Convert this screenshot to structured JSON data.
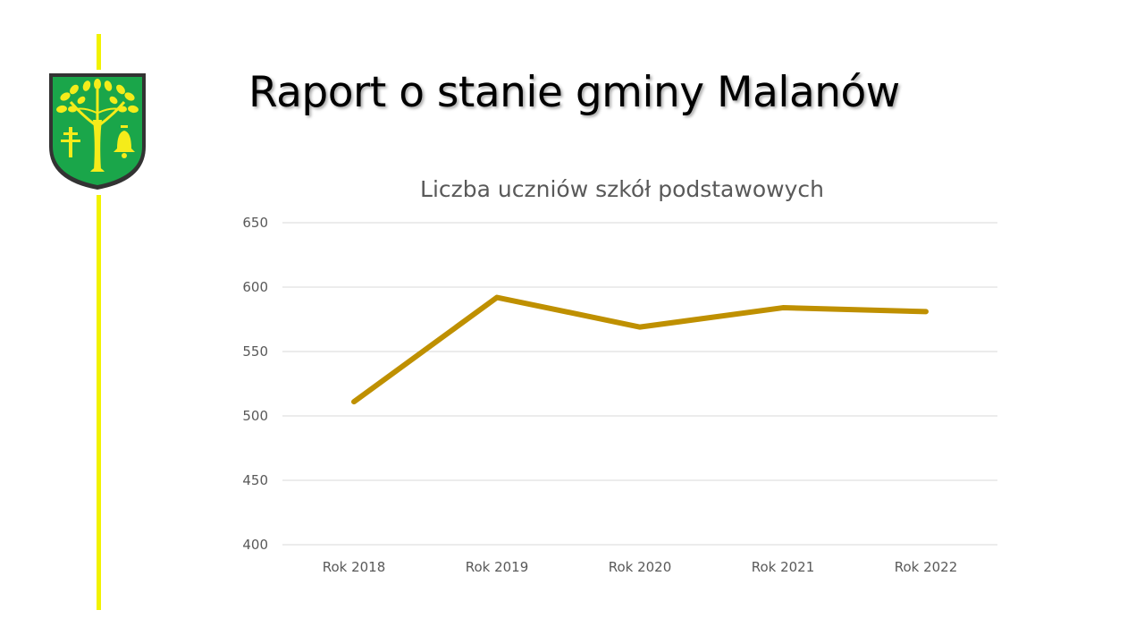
{
  "slide": {
    "title": "Raport o stanie gminy Malanów",
    "accent_color": "#f2f200"
  },
  "logo": {
    "name": "coat-of-arms",
    "colors": {
      "field": "#1aa64a",
      "tree": "#f5ec1a",
      "border": "#333333"
    }
  },
  "chart_data": {
    "type": "line",
    "title": "Liczba uczniów szkół podstawowych",
    "categories": [
      "Rok 2018",
      "Rok 2019",
      "Rok 2020",
      "Rok 2021",
      "Rok 2022"
    ],
    "series": [
      {
        "values": [
          511,
          592,
          569,
          584,
          581
        ],
        "color": "#bf9000"
      }
    ],
    "ylim": [
      400,
      650
    ],
    "yticks": [
      400,
      450,
      500,
      550,
      600,
      650
    ],
    "xlabel": "",
    "ylabel": "",
    "grid": true,
    "legend": "none"
  }
}
